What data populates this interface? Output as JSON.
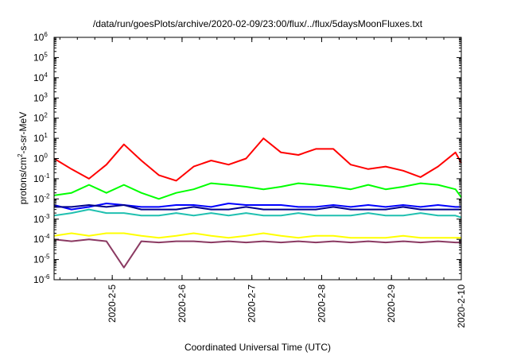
{
  "chart_data": {
    "type": "line",
    "title": "/data/run/goesPlots/archive/2020-02-09/23:00/flux/../flux/5daysMoonFluxes.txt",
    "xlabel": "Coordinated Universal Time (UTC)",
    "ylabel": "protons/cm²-s-sr-MeV",
    "ylabel_parts": [
      "protons/cm",
      "2",
      "-s-sr-MeV"
    ],
    "x_scale": "time",
    "y_scale": "log",
    "xlim": [
      "2020-02-04 04:00",
      "2020-02-10 00:00"
    ],
    "ylim": [
      1e-06,
      1000000.0
    ],
    "x_tick_labels": [
      "2020-2-5",
      "2020-2-6",
      "2020-2-7",
      "2020-2-8",
      "2020-2-9",
      "2020-2-10"
    ],
    "x_tick_dates": [
      "2020-02-05",
      "2020-02-06",
      "2020-02-07",
      "2020-02-08",
      "2020-02-09",
      "2020-02-10"
    ],
    "y_ticks": [
      {
        "mant": "10",
        "exp": "-6",
        "value": -6
      },
      {
        "mant": "10",
        "exp": "-5",
        "value": -5
      },
      {
        "mant": "10",
        "exp": "-4",
        "value": -4
      },
      {
        "mant": "10",
        "exp": "-3",
        "value": -3
      },
      {
        "mant": "10",
        "exp": "-2",
        "value": -2
      },
      {
        "mant": "10",
        "exp": "-1",
        "value": -1
      },
      {
        "mant": "10",
        "exp": "0",
        "value": 0
      },
      {
        "mant": "10",
        "exp": "1",
        "value": 1
      },
      {
        "mant": "10",
        "exp": "2",
        "value": 2
      },
      {
        "mant": "10",
        "exp": "3",
        "value": 3
      },
      {
        "mant": "10",
        "exp": "4",
        "value": 4
      },
      {
        "mant": "10",
        "exp": "5",
        "value": 5
      },
      {
        "mant": "10",
        "exp": "6",
        "value": 6
      }
    ],
    "grid": false,
    "legend": "none",
    "x": [
      "2020-02-04 04:00",
      "2020-02-04 10:00",
      "2020-02-04 16:00",
      "2020-02-04 22:00",
      "2020-02-05 04:00",
      "2020-02-05 10:00",
      "2020-02-05 16:00",
      "2020-02-05 22:00",
      "2020-02-06 04:00",
      "2020-02-06 10:00",
      "2020-02-06 16:00",
      "2020-02-06 22:00",
      "2020-02-07 04:00",
      "2020-02-07 10:00",
      "2020-02-07 16:00",
      "2020-02-07 22:00",
      "2020-02-08 04:00",
      "2020-02-08 10:00",
      "2020-02-08 16:00",
      "2020-02-08 22:00",
      "2020-02-09 04:00",
      "2020-02-09 10:00",
      "2020-02-09 16:00",
      "2020-02-09 22:00",
      "2020-02-10 00:00"
    ],
    "series": [
      {
        "color": "#ff0000",
        "values": [
          1.0,
          0.3,
          0.1,
          0.5,
          5.0,
          0.8,
          0.15,
          0.08,
          0.4,
          0.8,
          0.5,
          1.0,
          10.0,
          2.0,
          1.5,
          3.0,
          3.0,
          0.5,
          0.3,
          0.4,
          0.25,
          0.12,
          0.4,
          2.0,
          0.6
        ]
      },
      {
        "color": "#00ff00",
        "values": [
          0.015,
          0.02,
          0.05,
          0.02,
          0.05,
          0.02,
          0.01,
          0.02,
          0.03,
          0.06,
          0.05,
          0.04,
          0.03,
          0.04,
          0.06,
          0.05,
          0.04,
          0.03,
          0.05,
          0.03,
          0.04,
          0.06,
          0.05,
          0.03,
          0.012
        ]
      },
      {
        "color": "#0000ff",
        "values": [
          0.005,
          0.003,
          0.004,
          0.006,
          0.005,
          0.004,
          0.004,
          0.005,
          0.005,
          0.004,
          0.006,
          0.005,
          0.005,
          0.005,
          0.004,
          0.004,
          0.005,
          0.004,
          0.005,
          0.004,
          0.005,
          0.004,
          0.005,
          0.004,
          0.004
        ]
      },
      {
        "color": "#00008b",
        "values": [
          0.004,
          0.004,
          0.005,
          0.004,
          0.005,
          0.003,
          0.003,
          0.003,
          0.004,
          0.003,
          0.003,
          0.004,
          0.003,
          0.003,
          0.003,
          0.003,
          0.004,
          0.003,
          0.003,
          0.003,
          0.004,
          0.003,
          0.003,
          0.003,
          0.003
        ]
      },
      {
        "color": "#20c0b0",
        "values": [
          0.0015,
          0.002,
          0.003,
          0.002,
          0.002,
          0.0015,
          0.0015,
          0.002,
          0.0015,
          0.002,
          0.0015,
          0.002,
          0.0015,
          0.0015,
          0.002,
          0.0015,
          0.0015,
          0.0015,
          0.002,
          0.0015,
          0.0015,
          0.002,
          0.0015,
          0.0015,
          0.0012
        ]
      },
      {
        "color": "#ffff00",
        "values": [
          0.00015,
          0.0002,
          0.00015,
          0.0002,
          0.0002,
          0.00015,
          0.00012,
          0.00015,
          0.0002,
          0.00015,
          0.00012,
          0.00015,
          0.0002,
          0.00015,
          0.00012,
          0.00015,
          0.00015,
          0.00012,
          0.00012,
          0.00012,
          0.00015,
          0.00012,
          0.00012,
          0.00012,
          0.00012
        ]
      },
      {
        "color": "#8b3a62",
        "values": [
          0.0001,
          8e-05,
          0.0001,
          8e-05,
          4e-06,
          8e-05,
          7e-05,
          8e-05,
          8e-05,
          7e-05,
          8e-05,
          7e-05,
          8e-05,
          7e-05,
          8e-05,
          7e-05,
          8e-05,
          7e-05,
          8e-05,
          7e-05,
          8e-05,
          7e-05,
          8e-05,
          7e-05,
          7e-05
        ]
      }
    ]
  }
}
